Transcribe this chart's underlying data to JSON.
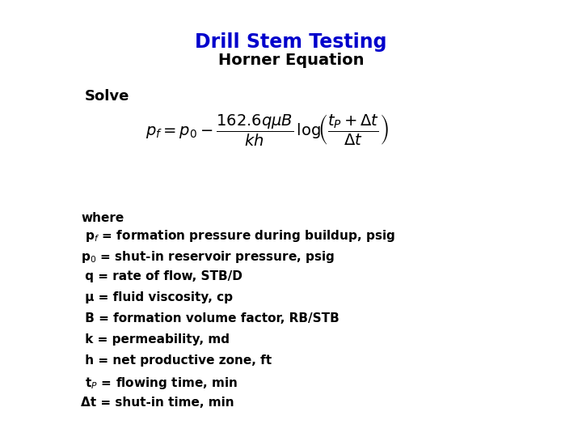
{
  "title_line1": "Drill Stem Testing",
  "title_line2": "Horner Equation",
  "title_color": "#0000CC",
  "title_line2_color": "#000000",
  "solve_label": "Solve",
  "where_text": "where",
  "definitions": [
    " p$_f$ = formation pressure during buildup, psig",
    "p$_0$ = shut-in reservoir pressure, psig",
    " q = rate of flow, STB/D",
    " μ = fluid viscosity, cp",
    " B = formation volume factor, RB/STB",
    " k = permeability, md",
    " h = net productive zone, ft",
    " t$_P$ = flowing time, min",
    "Δt = shut-in time, min"
  ],
  "bg_color": "#FFFFFF",
  "text_color": "#000000",
  "title_fontsize": 17,
  "subtitle_fontsize": 14,
  "solve_fontsize": 13,
  "equation_fontsize": 13,
  "def_fontsize": 11,
  "where_fontsize": 11
}
